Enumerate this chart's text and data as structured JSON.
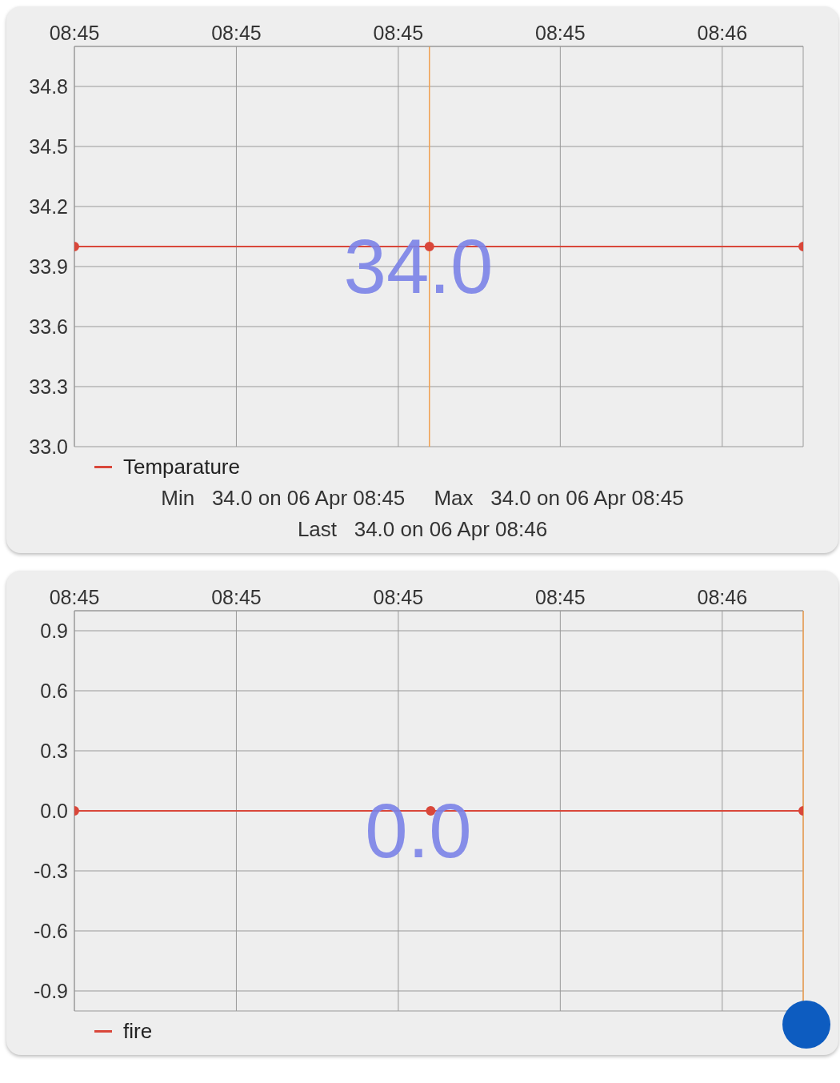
{
  "chart_data": [
    {
      "type": "line",
      "x": [
        8.75,
        8.75548,
        8.76125
      ],
      "series": [
        {
          "name": "Temparature",
          "color": "#d9473a",
          "values": [
            34.0,
            34.0,
            34.0
          ]
        }
      ],
      "xlim": [
        8.75,
        8.76125
      ],
      "xticks": [
        {
          "value": 8.75,
          "label": "08:45"
        },
        {
          "value": 8.7525,
          "label": "08:45"
        },
        {
          "value": 8.755,
          "label": "08:45"
        },
        {
          "value": 8.7575,
          "label": "08:45"
        },
        {
          "value": 8.76,
          "label": "08:46"
        }
      ],
      "ylim": [
        33.0,
        35.0
      ],
      "yticks": [
        {
          "value": 33,
          "label": "33.0"
        },
        {
          "value": 33.3,
          "label": "33.3"
        },
        {
          "value": 33.6,
          "label": "33.6"
        },
        {
          "value": 33.9,
          "label": "33.9"
        },
        {
          "value": 34.2,
          "label": "34.2"
        },
        {
          "value": 34.5,
          "label": "34.5"
        },
        {
          "value": 34.8,
          "label": "34.8"
        }
      ],
      "ref_lines": [
        {
          "axis": "x",
          "value": 8.75548,
          "color": "#f0a050"
        }
      ],
      "grid": true,
      "marker": "circle",
      "legend": "bottom left",
      "annotations": [
        "34.0",
        "Min   34.0 on 06 Apr 08:45     Max   34.0 on 06 Apr 08:45",
        "Last   34.0 on 06 Apr 08:46"
      ]
    },
    {
      "type": "line",
      "x": [
        8.75,
        8.7555,
        8.76125
      ],
      "series": [
        {
          "name": "fire",
          "color": "#d9473a",
          "values": [
            0.0,
            0.0,
            0.0
          ]
        }
      ],
      "xlim": [
        8.75,
        8.76125
      ],
      "xticks": [
        {
          "value": 8.75,
          "label": "08:45"
        },
        {
          "value": 8.7525,
          "label": "08:45"
        },
        {
          "value": 8.755,
          "label": "08:45"
        },
        {
          "value": 8.7575,
          "label": "08:45"
        },
        {
          "value": 8.76,
          "label": "08:46"
        }
      ],
      "ylim": [
        -1.0,
        1.0
      ],
      "yticks": [
        {
          "value": -0.9,
          "label": "-0.9"
        },
        {
          "value": -0.6,
          "label": "-0.6"
        },
        {
          "value": -0.3,
          "label": "-0.3"
        },
        {
          "value": 0,
          "label": "0.0"
        },
        {
          "value": 0.3,
          "label": "0.3"
        },
        {
          "value": 0.6,
          "label": "0.6"
        },
        {
          "value": 0.9,
          "label": "0.9"
        }
      ],
      "ref_lines": [
        {
          "axis": "x",
          "value": 8.76125,
          "color": "#f0a050"
        }
      ],
      "grid": true,
      "marker": "circle",
      "legend": "bottom left",
      "annotations": [
        "0.0"
      ]
    }
  ]
}
